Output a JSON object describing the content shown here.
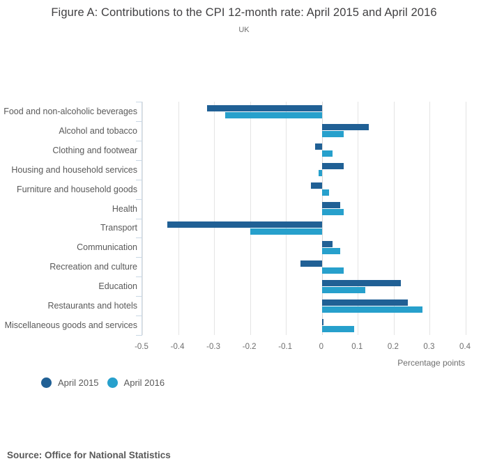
{
  "title": "Figure A: Contributions to the CPI 12-month rate: April 2015 and April 2016",
  "subtitle": "UK",
  "source": "Source: Office for National Statistics",
  "colors": {
    "april2015": "#206095",
    "april2016": "#27A0CC",
    "axis": "#c9d7e4",
    "gridline": "#e4e4e4",
    "text_muted": "#6e6e6e"
  },
  "legend": {
    "items": [
      {
        "label": "April 2015",
        "color": "#206095"
      },
      {
        "label": "April 2016",
        "color": "#27A0CC"
      }
    ]
  },
  "chart_data": {
    "type": "bar",
    "orientation": "horizontal",
    "title": "Figure A: Contributions to the CPI 12-month rate: April 2015 and April 2016",
    "subtitle": "UK",
    "categories": [
      "Food and non-alcoholic beverages",
      "Alcohol and tobacco",
      "Clothing and footwear",
      "Housing and household services",
      "Furniture and household goods",
      "Health",
      "Transport",
      "Communication",
      "Recreation and culture",
      "Education",
      "Restaurants and hotels",
      "Miscellaneous goods and services"
    ],
    "series": [
      {
        "name": "April 2015",
        "color": "#206095",
        "values": [
          -0.32,
          0.13,
          -0.02,
          0.06,
          -0.03,
          0.05,
          -0.43,
          0.03,
          -0.06,
          0.22,
          0.24,
          0.005
        ]
      },
      {
        "name": "April 2016",
        "color": "#27A0CC",
        "values": [
          -0.27,
          0.06,
          0.03,
          -0.01,
          0.02,
          0.06,
          -0.2,
          0.05,
          0.06,
          0.12,
          0.28,
          0.09
        ]
      }
    ],
    "xlabel": "Percentage points",
    "ylabel": "",
    "xlim": [
      -0.5,
      0.4
    ],
    "xticks": [
      -0.5,
      -0.4,
      -0.3,
      -0.2,
      -0.1,
      0,
      0.1,
      0.2,
      0.3,
      0.4
    ],
    "xtick_labels": [
      "-0.5",
      "-0.4",
      "-0.3",
      "-0.2",
      "-0.1",
      "0",
      "0.1",
      "0.2",
      "0.3",
      "0.4"
    ],
    "grid": true,
    "legend_position": "bottom-left"
  }
}
